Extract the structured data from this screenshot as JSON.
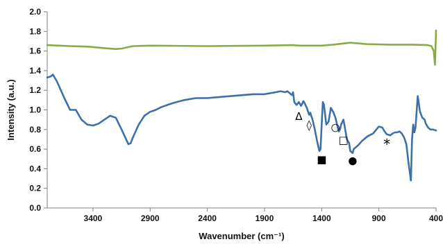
{
  "chart_data": {
    "type": "line",
    "title": "",
    "xlabel": "Wavenumber (cm⁻¹)",
    "ylabel": "Intensity (a.u.)",
    "xlim": [
      3800,
      400
    ],
    "ylim": [
      0,
      2.0
    ],
    "x_reversed": true,
    "x_ticks": [
      3400,
      2900,
      2400,
      1900,
      1400,
      900,
      400
    ],
    "y_ticks": [
      0.0,
      0.2,
      0.4,
      0.6,
      0.8,
      1.0,
      1.2,
      1.4,
      1.6,
      1.8,
      2.0
    ],
    "y_tick_labels": [
      "0.0",
      "0.2",
      "0.4",
      "0.6",
      "0.8",
      "1.0",
      "1.2",
      "1.4",
      "1.6",
      "1.8",
      "2.0"
    ],
    "x_tick_labels": [
      "3400",
      "2900",
      "2400",
      "1900",
      "1400",
      "900",
      "400"
    ],
    "grid": false,
    "legend": "none",
    "series": [
      {
        "color": "#8aaa45",
        "x": [
          3800,
          3600,
          3450,
          3300,
          3200,
          3150,
          3050,
          2900,
          2400,
          1900,
          1650,
          1600,
          1400,
          1300,
          1150,
          1100,
          1000,
          800,
          600,
          470,
          440,
          420,
          410,
          405,
          400
        ],
        "y": [
          1.66,
          1.65,
          1.645,
          1.63,
          1.62,
          1.625,
          1.65,
          1.655,
          1.65,
          1.655,
          1.66,
          1.655,
          1.655,
          1.665,
          1.685,
          1.68,
          1.67,
          1.665,
          1.665,
          1.66,
          1.65,
          1.6,
          1.46,
          1.62,
          1.81
        ]
      },
      {
        "color": "#3d6fa8",
        "x": [
          3800,
          3770,
          3750,
          3720,
          3700,
          3650,
          3600,
          3550,
          3500,
          3450,
          3400,
          3350,
          3300,
          3250,
          3200,
          3150,
          3110,
          3090,
          3070,
          3050,
          3000,
          2950,
          2900,
          2850,
          2800,
          2700,
          2600,
          2500,
          2400,
          2300,
          2200,
          2100,
          2000,
          1900,
          1800,
          1760,
          1720,
          1700,
          1680,
          1660,
          1650,
          1640,
          1620,
          1600,
          1580,
          1560,
          1550,
          1530,
          1510,
          1500,
          1480,
          1460,
          1440,
          1420,
          1410,
          1400,
          1390,
          1380,
          1360,
          1340,
          1320,
          1300,
          1280,
          1260,
          1250,
          1240,
          1230,
          1210,
          1200,
          1180,
          1160,
          1150,
          1130,
          1120,
          1100,
          1080,
          1050,
          1000,
          950,
          900,
          870,
          850,
          830,
          800,
          780,
          760,
          740,
          720,
          700,
          680,
          660,
          640,
          620,
          610,
          600,
          590,
          580,
          560,
          540,
          520,
          500,
          490,
          480,
          470,
          450,
          430,
          400
        ],
        "y": [
          1.33,
          1.34,
          1.36,
          1.3,
          1.25,
          1.12,
          1.0,
          1.0,
          0.9,
          0.85,
          0.84,
          0.86,
          0.9,
          0.94,
          0.92,
          0.8,
          0.7,
          0.65,
          0.66,
          0.72,
          0.85,
          0.94,
          0.98,
          1.0,
          1.03,
          1.07,
          1.1,
          1.12,
          1.12,
          1.13,
          1.14,
          1.15,
          1.16,
          1.16,
          1.18,
          1.19,
          1.18,
          1.19,
          1.17,
          1.15,
          1.18,
          1.08,
          1.05,
          1.08,
          1.04,
          1.09,
          1.07,
          1.02,
          0.95,
          0.97,
          0.9,
          0.8,
          0.68,
          0.58,
          0.6,
          0.85,
          1.08,
          1.05,
          0.85,
          0.88,
          1.02,
          0.98,
          0.92,
          0.82,
          0.78,
          0.8,
          0.85,
          0.9,
          0.84,
          0.7,
          0.66,
          0.58,
          0.56,
          0.6,
          0.62,
          0.64,
          0.68,
          0.73,
          0.76,
          0.83,
          0.82,
          0.78,
          0.75,
          0.74,
          0.76,
          0.77,
          0.77,
          0.78,
          0.76,
          0.72,
          0.65,
          0.45,
          0.28,
          0.7,
          0.85,
          0.77,
          0.82,
          1.14,
          0.98,
          0.92,
          0.9,
          0.86,
          0.84,
          0.82,
          0.8,
          0.8,
          0.79
        ]
      }
    ],
    "annotations": [
      {
        "symbol": "Δ",
        "x": 1600,
        "y": 0.93
      },
      {
        "symbol": "◊",
        "x": 1510,
        "y": 0.84
      },
      {
        "symbol": "■",
        "x": 1400,
        "y": 0.49
      },
      {
        "symbol": "○",
        "x": 1280,
        "y": 0.82
      },
      {
        "symbol": "□",
        "x": 1210,
        "y": 0.69
      },
      {
        "symbol": "●",
        "x": 1130,
        "y": 0.48
      },
      {
        "symbol": "*",
        "x": 830,
        "y": 0.64
      }
    ]
  }
}
